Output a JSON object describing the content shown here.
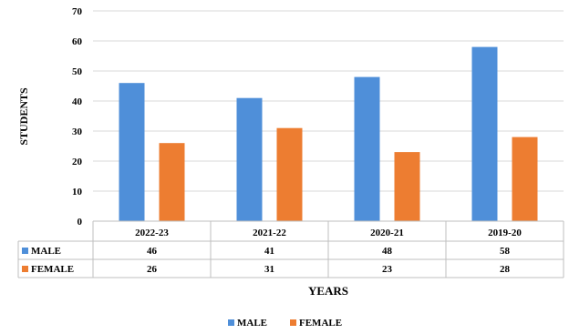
{
  "chart_data": {
    "type": "bar",
    "categories": [
      "2022-23",
      "2021-22",
      "2020-21",
      "2019-20"
    ],
    "series": [
      {
        "name": "MALE",
        "values": [
          46,
          41,
          48,
          58
        ],
        "color": "#4F8FD9"
      },
      {
        "name": "FEMALE",
        "values": [
          26,
          31,
          23,
          28
        ],
        "color": "#ED7D31"
      }
    ],
    "ylabel": "STUDENTS",
    "xlabel": "YEARS",
    "ylim": [
      0,
      70
    ],
    "yticks": [
      0,
      10,
      20,
      30,
      40,
      50,
      60,
      70
    ],
    "grid": true,
    "legend": "bottom-center",
    "data_table": true,
    "colors": {
      "grid": "#D9D9D9",
      "table_border": "#BFBFBF"
    }
  }
}
